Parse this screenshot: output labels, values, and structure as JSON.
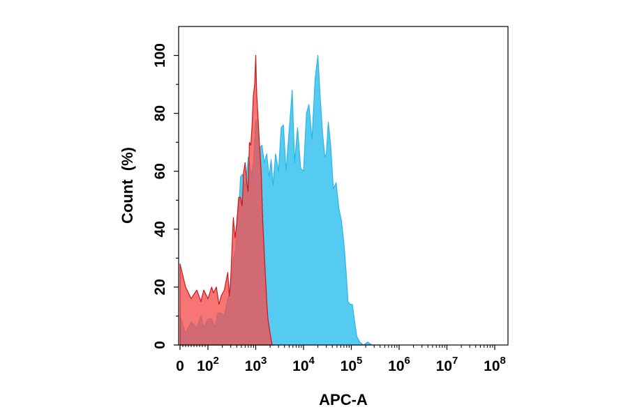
{
  "chart_data": {
    "type": "area",
    "xlabel": "APC-A",
    "ylabel": "Count  (%)",
    "xscale": "biexponential (0, then log10 decades)",
    "x_tick_labels": [
      {
        "base": "0",
        "exp": ""
      },
      {
        "base": "10",
        "exp": "2"
      },
      {
        "base": "10",
        "exp": "3"
      },
      {
        "base": "10",
        "exp": "4"
      },
      {
        "base": "10",
        "exp": "5"
      },
      {
        "base": "10",
        "exp": "6"
      },
      {
        "base": "10",
        "exp": "7"
      },
      {
        "base": "10",
        "exp": "8"
      }
    ],
    "x_tick_values": [
      0,
      100,
      1000,
      10000,
      100000,
      1000000,
      10000000,
      100000000
    ],
    "y_ticks": [
      0,
      20,
      40,
      60,
      80,
      100
    ],
    "ylim": [
      0,
      110
    ],
    "grid": false,
    "legend": "none",
    "series": [
      {
        "color": "#29b6e6",
        "fill": "#56cbf2",
        "points": [
          [
            0,
            10
          ],
          [
            20,
            4
          ],
          [
            40,
            8
          ],
          [
            60,
            6
          ],
          [
            75,
            10
          ],
          [
            85,
            6
          ],
          [
            100,
            9
          ],
          [
            120,
            9
          ],
          [
            140,
            6
          ],
          [
            160,
            11
          ],
          [
            190,
            11
          ],
          [
            220,
            10
          ],
          [
            260,
            16
          ],
          [
            290,
            18
          ],
          [
            320,
            24
          ],
          [
            340,
            30
          ],
          [
            380,
            33
          ],
          [
            420,
            44
          ],
          [
            450,
            49
          ],
          [
            480,
            58
          ],
          [
            530,
            59
          ],
          [
            600,
            54
          ],
          [
            700,
            65
          ],
          [
            800,
            58
          ],
          [
            900,
            63
          ],
          [
            1000,
            77
          ],
          [
            1100,
            78
          ],
          [
            1200,
            68
          ],
          [
            1350,
            69
          ],
          [
            1500,
            63
          ],
          [
            1700,
            66
          ],
          [
            1900,
            58
          ],
          [
            2100,
            64
          ],
          [
            2300,
            55
          ],
          [
            2600,
            66
          ],
          [
            3000,
            60
          ],
          [
            3400,
            75
          ],
          [
            3800,
            76
          ],
          [
            4300,
            60
          ],
          [
            5000,
            74
          ],
          [
            5800,
            88
          ],
          [
            6500,
            63
          ],
          [
            7500,
            75
          ],
          [
            8700,
            61
          ],
          [
            10000,
            60
          ],
          [
            11500,
            80
          ],
          [
            13000,
            83
          ],
          [
            15000,
            71
          ],
          [
            17500,
            92
          ],
          [
            20000,
            100
          ],
          [
            22000,
            87
          ],
          [
            25000,
            73
          ],
          [
            28000,
            65
          ],
          [
            30000,
            66
          ],
          [
            33000,
            77
          ],
          [
            37000,
            69
          ],
          [
            42000,
            54
          ],
          [
            48000,
            56
          ],
          [
            55000,
            47
          ],
          [
            62000,
            43
          ],
          [
            70000,
            35
          ],
          [
            78000,
            25
          ],
          [
            85000,
            15
          ],
          [
            95000,
            14
          ],
          [
            105000,
            14
          ],
          [
            115000,
            9
          ],
          [
            130000,
            3
          ],
          [
            150000,
            1
          ],
          [
            180000,
            0
          ],
          [
            220000,
            1
          ],
          [
            270000,
            0
          ],
          [
            320000,
            0
          ],
          [
            400000,
            0
          ]
        ]
      },
      {
        "color": "#d01515",
        "fill": "rgba(244,78,78,0.78)",
        "points": [
          [
            0,
            28
          ],
          [
            20,
            20
          ],
          [
            40,
            16
          ],
          [
            60,
            19
          ],
          [
            75,
            15
          ],
          [
            85,
            19
          ],
          [
            100,
            16
          ],
          [
            120,
            20
          ],
          [
            130,
            18
          ],
          [
            150,
            20
          ],
          [
            170,
            14
          ],
          [
            190,
            17
          ],
          [
            220,
            19
          ],
          [
            260,
            25
          ],
          [
            280,
            17
          ],
          [
            300,
            23
          ],
          [
            340,
            44
          ],
          [
            370,
            37
          ],
          [
            400,
            42
          ],
          [
            440,
            51
          ],
          [
            480,
            51
          ],
          [
            520,
            48
          ],
          [
            560,
            60
          ],
          [
            600,
            63
          ],
          [
            650,
            56
          ],
          [
            690,
            53
          ],
          [
            740,
            70
          ],
          [
            790,
            69
          ],
          [
            840,
            76
          ],
          [
            890,
            86
          ],
          [
            950,
            90
          ],
          [
            1000,
            100
          ],
          [
            1050,
            86
          ],
          [
            1100,
            81
          ],
          [
            1200,
            69
          ],
          [
            1300,
            60
          ],
          [
            1400,
            43
          ],
          [
            1550,
            28
          ],
          [
            1700,
            15
          ],
          [
            1800,
            9
          ],
          [
            2000,
            4
          ],
          [
            2200,
            0
          ],
          [
            2500,
            0
          ]
        ]
      }
    ]
  }
}
